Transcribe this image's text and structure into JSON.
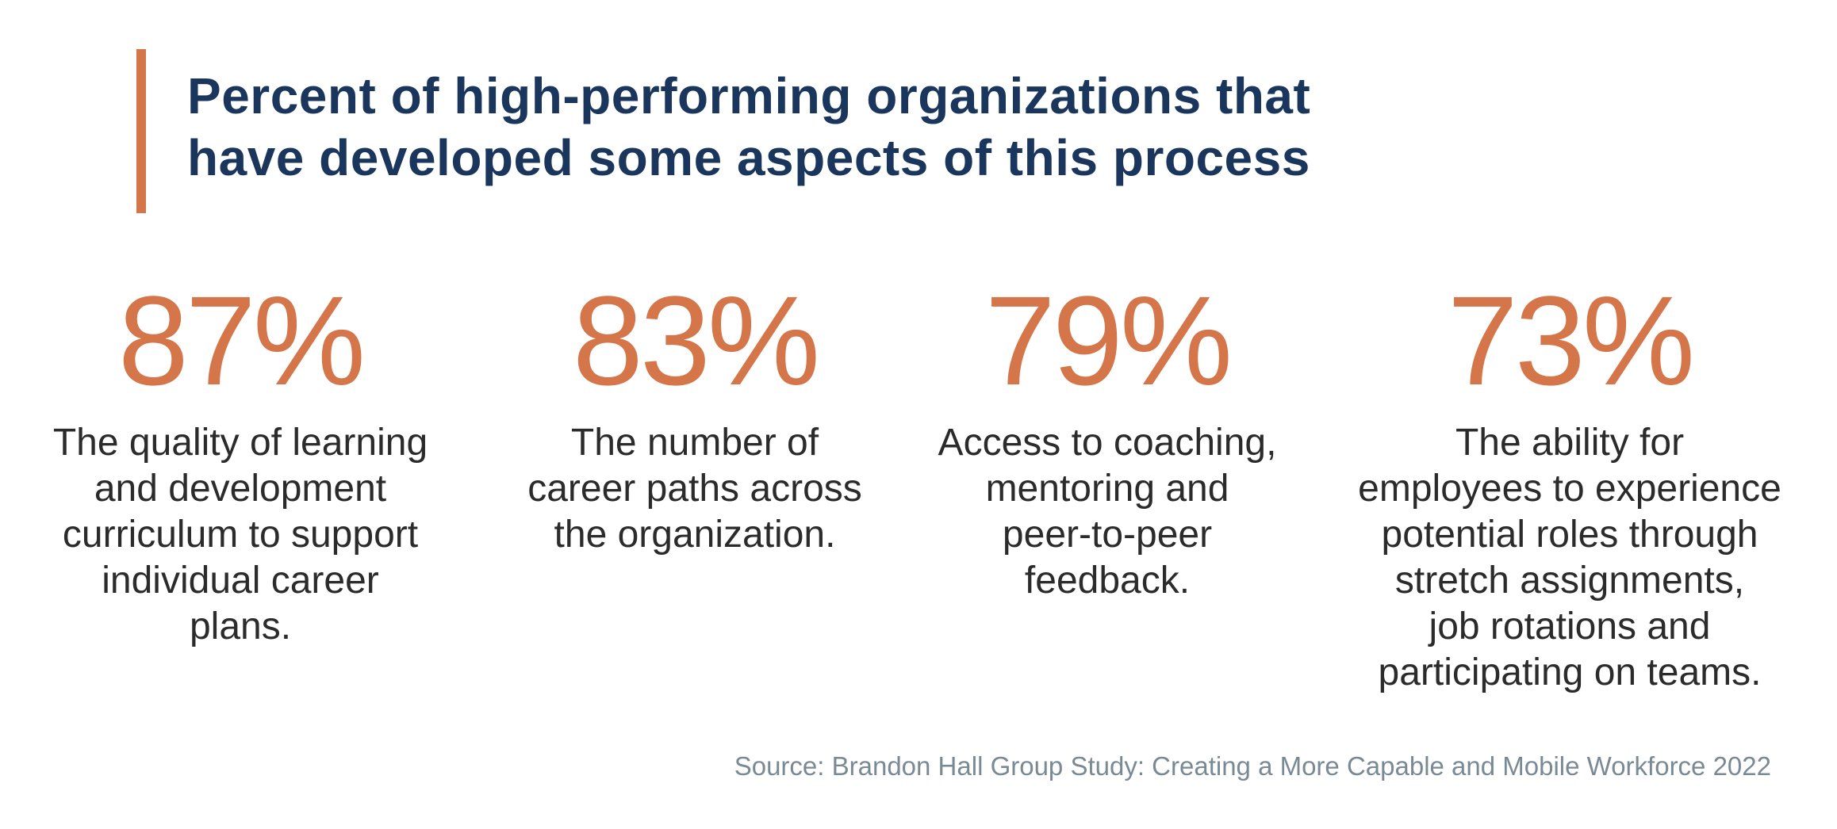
{
  "header": {
    "title_lines": [
      "Percent of high-performing organizations that",
      "have developed some aspects of this process"
    ]
  },
  "stats": [
    {
      "value": "87%",
      "lines": [
        "The quality of learning",
        "and development",
        "curriculum to support",
        "individual career",
        "plans."
      ]
    },
    {
      "value": "83%",
      "lines": [
        "The number of",
        "career paths across",
        "the organization."
      ]
    },
    {
      "value": "79%",
      "lines": [
        "Access to coaching,",
        "mentoring and",
        "peer-to-peer",
        "feedback."
      ]
    },
    {
      "value": "73%",
      "lines": [
        "The ability for",
        "employees to experience",
        "potential roles through",
        "stretch assignments,",
        "job rotations and",
        "participating on teams."
      ]
    }
  ],
  "footer": {
    "source": "Source: Brandon Hall Group Study: Creating a More Capable and Mobile Workforce 2022"
  }
}
